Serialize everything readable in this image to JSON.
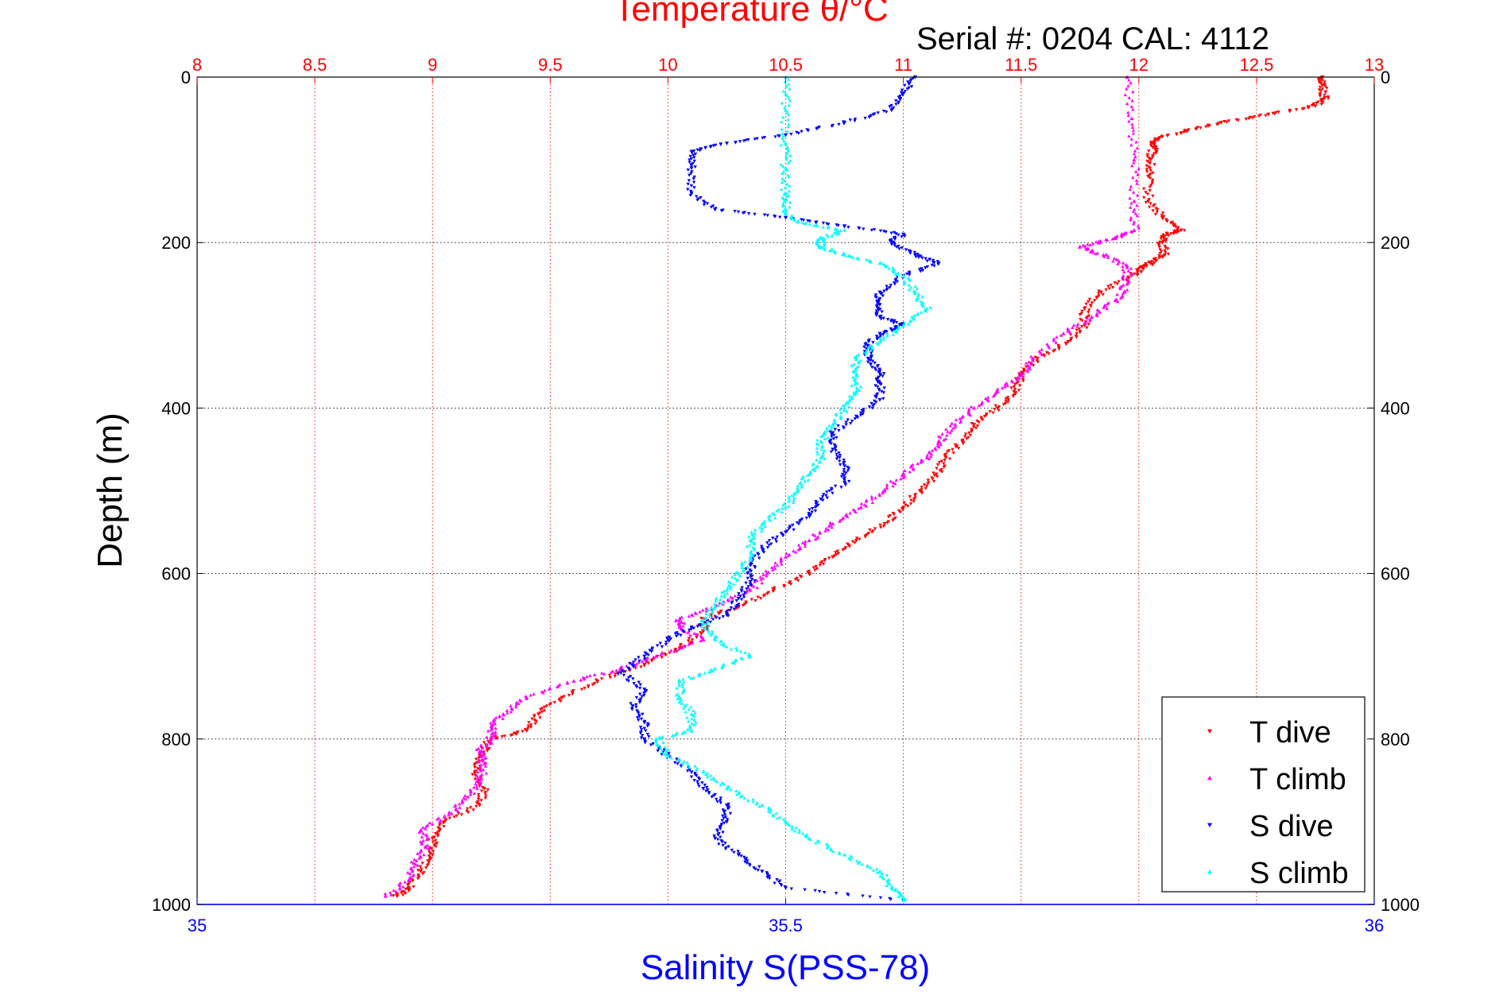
{
  "chart_data": {
    "type": "scatter",
    "title": "Temperature θ/°C",
    "subtitle": "Serial #: 0204  CAL: 4112",
    "ylabel": "Depth (m)",
    "xlabel": "Salinity S(PSS-78)",
    "temperature_axis": {
      "position": "top",
      "range": [
        8,
        13
      ],
      "ticks": [
        "8",
        "8.5",
        "9",
        "9.5",
        "10",
        "10.5",
        "11",
        "11.5",
        "12",
        "12.5",
        "13"
      ],
      "grid": true,
      "color": "#ff0000"
    },
    "salinity_axis": {
      "position": "bottom",
      "range": [
        35,
        36
      ],
      "ticks": [
        "35",
        "35.5",
        "36"
      ],
      "color": "#0000ff"
    },
    "depth_axis": {
      "range": [
        0,
        1000
      ],
      "reversed": true,
      "ticks": [
        "0",
        "200",
        "400",
        "600",
        "800",
        "1000"
      ],
      "grid": true
    },
    "legend": {
      "placement": "bottom-right"
    },
    "series": [
      {
        "name": "T dive",
        "axis": "temperature",
        "color": "#ff0000",
        "marker": "triangle-down",
        "depth": [
          0,
          10,
          25,
          35,
          45,
          55,
          65,
          75,
          85,
          100,
          120,
          150,
          170,
          185,
          190,
          200,
          215,
          225,
          230,
          240,
          260,
          280,
          300,
          320,
          340,
          360,
          380,
          400,
          420,
          440,
          460,
          480,
          500,
          520,
          540,
          560,
          580,
          600,
          620,
          640,
          655,
          670,
          690,
          710,
          730,
          750,
          770,
          790,
          800,
          820,
          840,
          860,
          880,
          900,
          920,
          940,
          960,
          980,
          990
        ],
        "temperature": [
          12.78,
          12.78,
          12.79,
          12.75,
          12.55,
          12.35,
          12.2,
          12.07,
          12.06,
          12.05,
          12.04,
          12.04,
          12.1,
          12.18,
          12.12,
          12.1,
          12.11,
          12.05,
          12.02,
          11.97,
          11.84,
          11.77,
          11.77,
          11.7,
          11.57,
          11.5,
          11.47,
          11.4,
          11.3,
          11.25,
          11.18,
          11.14,
          11.07,
          11.0,
          10.92,
          10.8,
          10.7,
          10.6,
          10.45,
          10.3,
          10.15,
          10.15,
          10.05,
          9.9,
          9.7,
          9.55,
          9.45,
          9.4,
          9.25,
          9.2,
          9.18,
          9.22,
          9.2,
          9.05,
          9.0,
          9.0,
          8.95,
          8.9,
          8.85
        ]
      },
      {
        "name": "T climb",
        "axis": "temperature",
        "color": "#ff00ff",
        "marker": "triangle-up",
        "depth": [
          0,
          50,
          100,
          150,
          185,
          195,
          205,
          215,
          230,
          250,
          270,
          290,
          310,
          340,
          360,
          380,
          400,
          420,
          440,
          460,
          480,
          500,
          520,
          540,
          560,
          580,
          600,
          620,
          640,
          655,
          665,
          680,
          700,
          715,
          730,
          750,
          770,
          785,
          800,
          815,
          830,
          850,
          870,
          890,
          910,
          930,
          950,
          970,
          990
        ],
        "temperature": [
          11.95,
          11.97,
          11.98,
          11.98,
          11.98,
          11.9,
          11.75,
          11.85,
          11.95,
          11.95,
          11.9,
          11.8,
          11.68,
          11.55,
          11.5,
          11.4,
          11.3,
          11.22,
          11.15,
          11.1,
          11.0,
          10.92,
          10.82,
          10.7,
          10.6,
          10.5,
          10.42,
          10.35,
          10.2,
          10.05,
          10.05,
          10.15,
          9.95,
          9.8,
          9.6,
          9.4,
          9.3,
          9.25,
          9.25,
          9.2,
          9.22,
          9.2,
          9.15,
          9.08,
          8.95,
          8.97,
          8.92,
          8.9,
          8.8
        ]
      },
      {
        "name": "S dive",
        "axis": "salinity",
        "color": "#0000ff",
        "marker": "triangle-down",
        "depth": [
          0,
          20,
          40,
          55,
          70,
          80,
          90,
          110,
          140,
          160,
          170,
          180,
          190,
          200,
          215,
          225,
          240,
          260,
          275,
          290,
          300,
          310,
          325,
          340,
          355,
          370,
          390,
          410,
          430,
          450,
          470,
          490,
          510,
          530,
          550,
          570,
          590,
          610,
          630,
          650,
          665,
          680,
          700,
          720,
          740,
          760,
          780,
          800,
          820,
          840,
          860,
          880,
          900,
          920,
          940,
          960,
          980,
          995
        ],
        "salinity": [
          35.61,
          35.6,
          35.59,
          35.55,
          35.5,
          35.45,
          35.42,
          35.42,
          35.42,
          35.44,
          35.5,
          35.55,
          35.6,
          35.59,
          35.61,
          35.63,
          35.6,
          35.58,
          35.58,
          35.58,
          35.6,
          35.58,
          35.57,
          35.57,
          35.58,
          35.58,
          35.58,
          35.56,
          35.54,
          35.54,
          35.55,
          35.55,
          35.53,
          35.52,
          35.5,
          35.48,
          35.47,
          35.47,
          35.46,
          35.45,
          35.42,
          35.4,
          35.38,
          35.36,
          35.38,
          35.37,
          35.38,
          35.38,
          35.4,
          35.42,
          35.43,
          35.45,
          35.45,
          35.44,
          35.46,
          35.48,
          35.5,
          35.6
        ]
      },
      {
        "name": "S climb",
        "axis": "salinity",
        "color": "#00ffff",
        "marker": "triangle-up",
        "depth": [
          0,
          40,
          80,
          110,
          140,
          160,
          175,
          185,
          195,
          205,
          215,
          225,
          240,
          260,
          280,
          300,
          320,
          340,
          360,
          380,
          400,
          420,
          440,
          460,
          480,
          500,
          520,
          540,
          560,
          580,
          600,
          620,
          640,
          660,
          680,
          700,
          715,
          730,
          750,
          770,
          790,
          800,
          820,
          840,
          860,
          880,
          900,
          920,
          940,
          960,
          980,
          995
        ],
        "salinity": [
          35.5,
          35.5,
          35.5,
          35.5,
          35.5,
          35.5,
          35.51,
          35.55,
          35.53,
          35.53,
          35.55,
          35.58,
          35.6,
          35.61,
          35.62,
          35.6,
          35.58,
          35.56,
          35.56,
          35.56,
          35.55,
          35.54,
          35.53,
          35.53,
          35.52,
          35.51,
          35.5,
          35.48,
          35.47,
          35.47,
          35.46,
          35.45,
          35.44,
          35.43,
          35.44,
          35.47,
          35.44,
          35.41,
          35.41,
          35.42,
          35.42,
          35.39,
          35.4,
          35.43,
          35.45,
          35.48,
          35.5,
          35.52,
          35.55,
          35.58,
          35.59,
          35.6
        ]
      }
    ]
  }
}
